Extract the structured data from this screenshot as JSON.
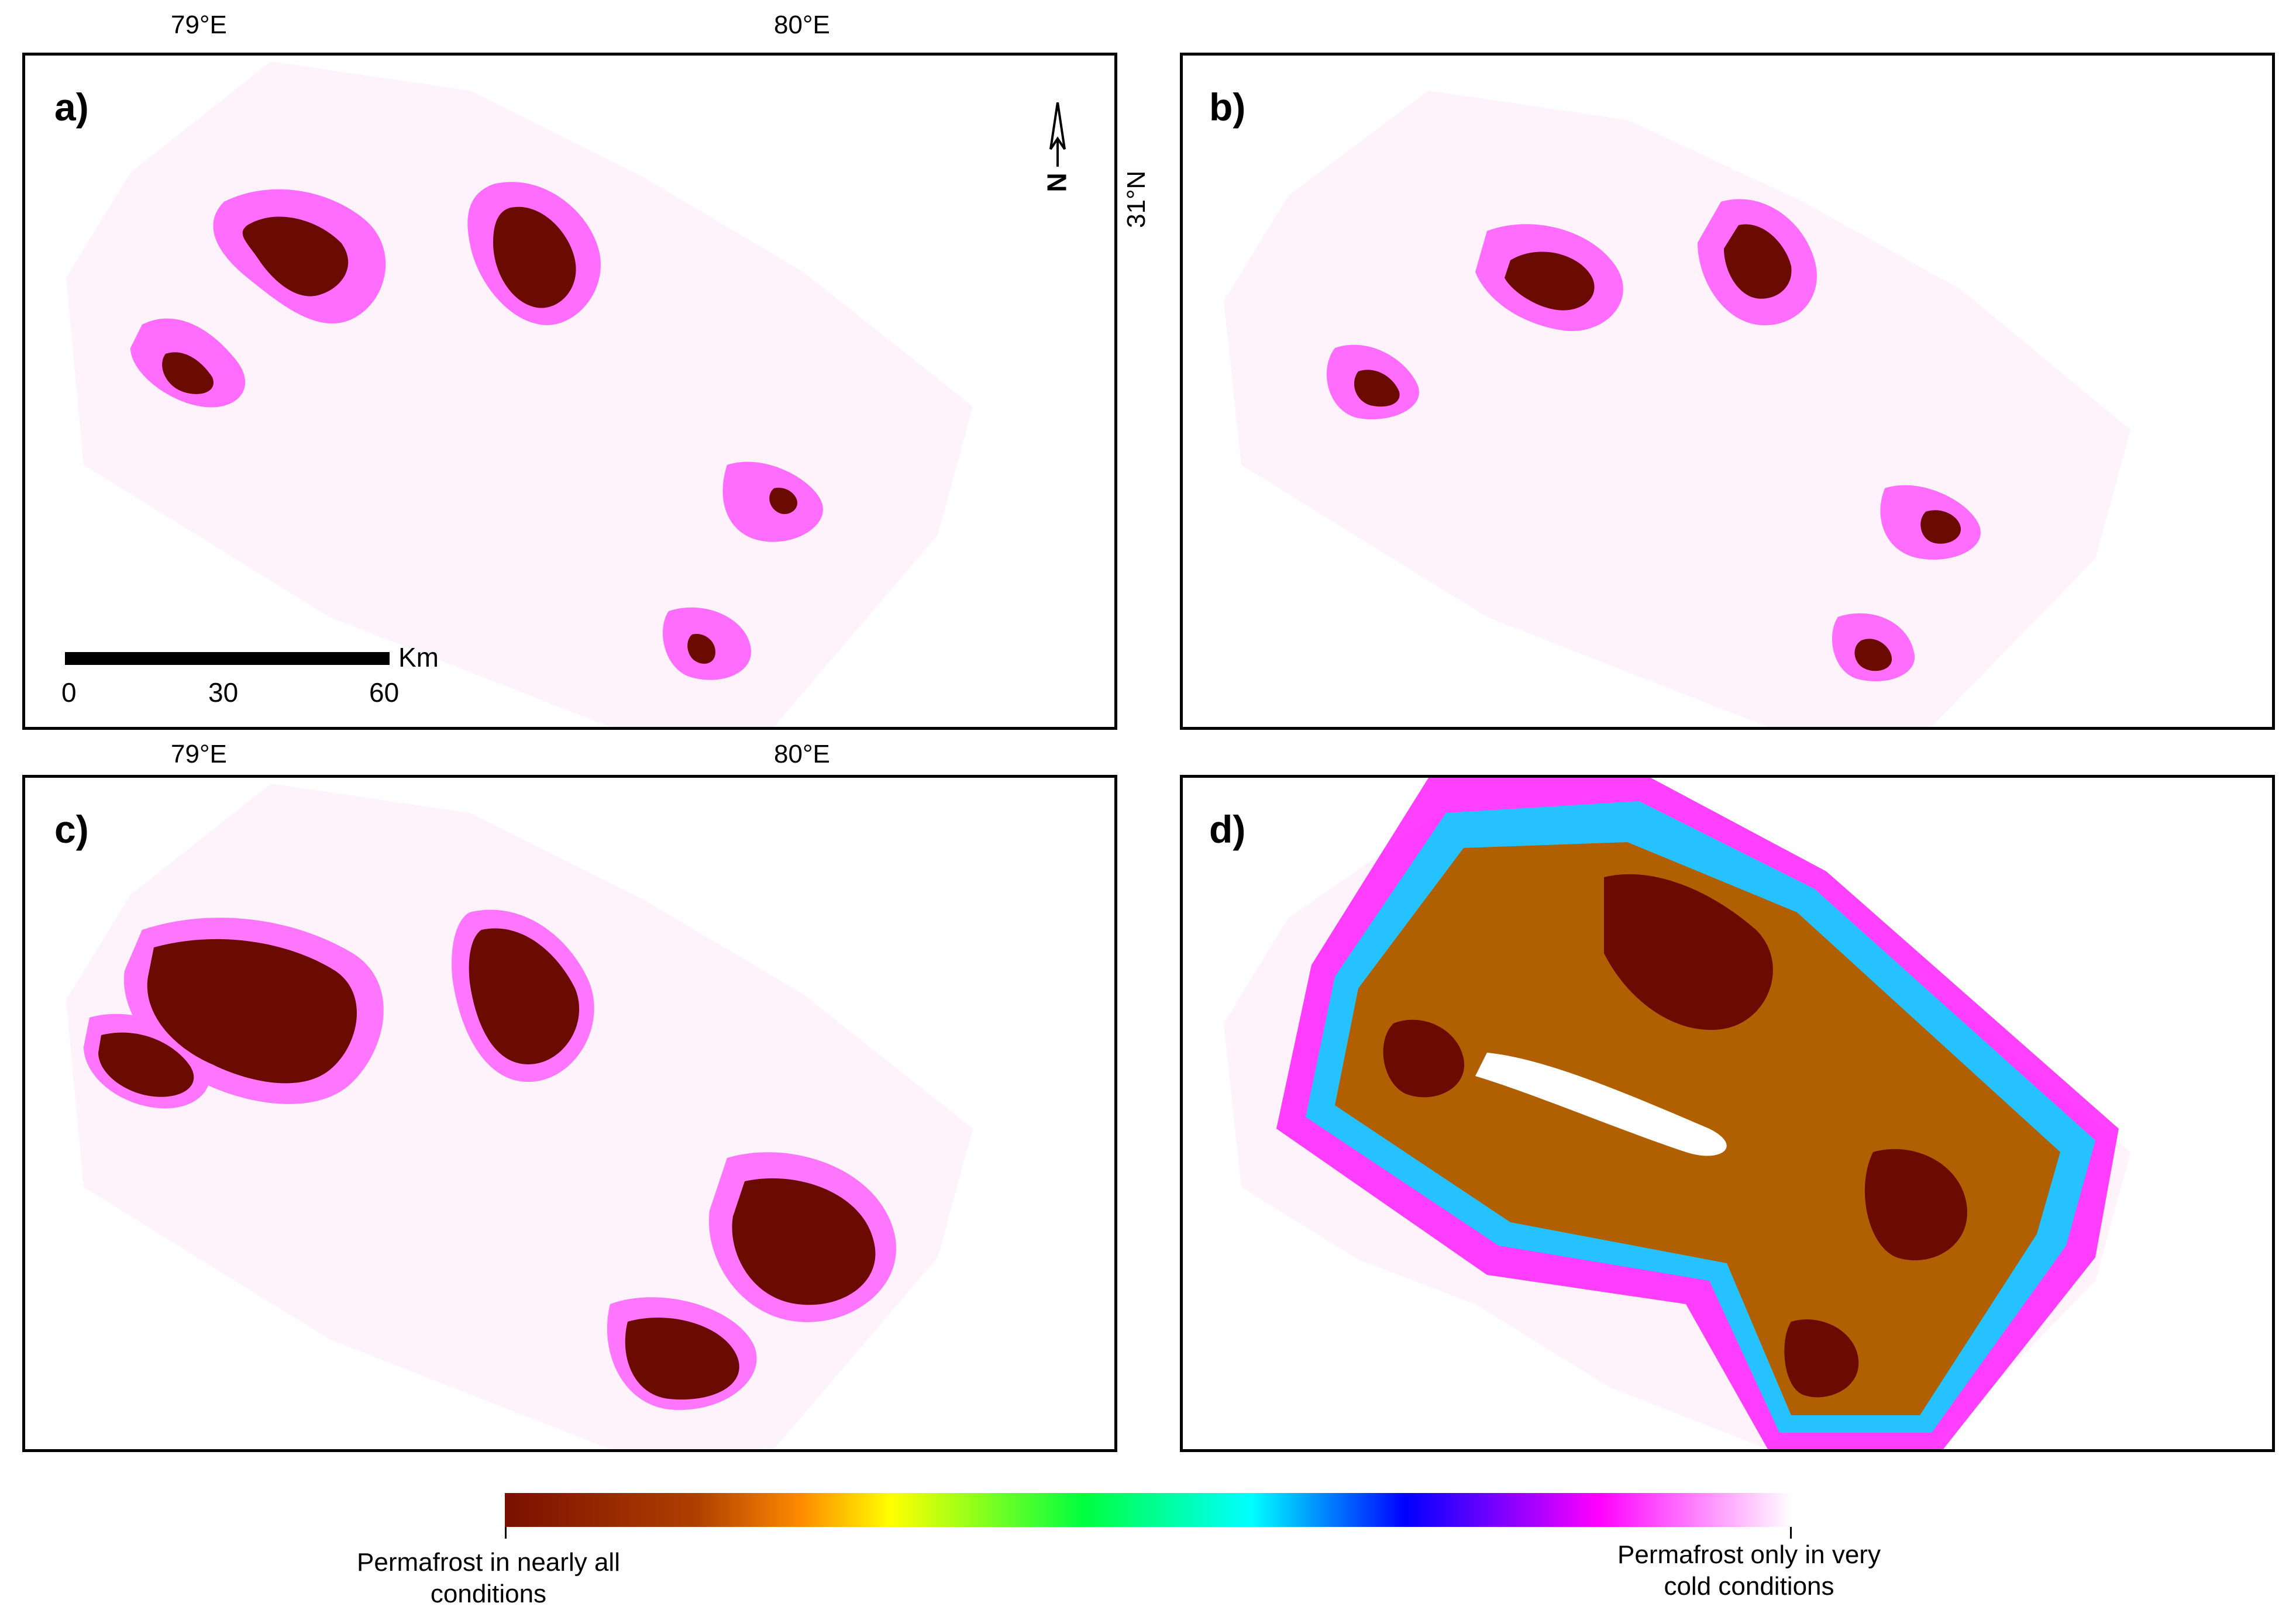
{
  "top_axis": {
    "lon_left": "79°E",
    "lon_right": "80°E"
  },
  "mid_axis": {
    "lon_left": "79°E",
    "lon_right": "80°E"
  },
  "side_axis": {
    "lat": "31°N"
  },
  "panels": [
    {
      "id": "a",
      "label": "a)"
    },
    {
      "id": "b",
      "label": "b)"
    },
    {
      "id": "c",
      "label": "c)"
    },
    {
      "id": "d",
      "label": "d)"
    }
  ],
  "north_arrow": {
    "label": "N"
  },
  "scale_bar": {
    "unit": "Km",
    "ticks": [
      "0",
      "30",
      "60"
    ]
  },
  "legend": {
    "left_label": "Permafrost in nearly all conditions",
    "right_label": "Permafrost only in very cold conditions"
  },
  "colors": {
    "dark_permafrost": "#6b0a00",
    "gradient": [
      "#7a0f00",
      "#ff8a00",
      "#ffff00",
      "#00ff40",
      "#00ffff",
      "#0000ff",
      "#ff00ff",
      "#ffffff"
    ],
    "background_wash": "#fff3fb"
  }
}
